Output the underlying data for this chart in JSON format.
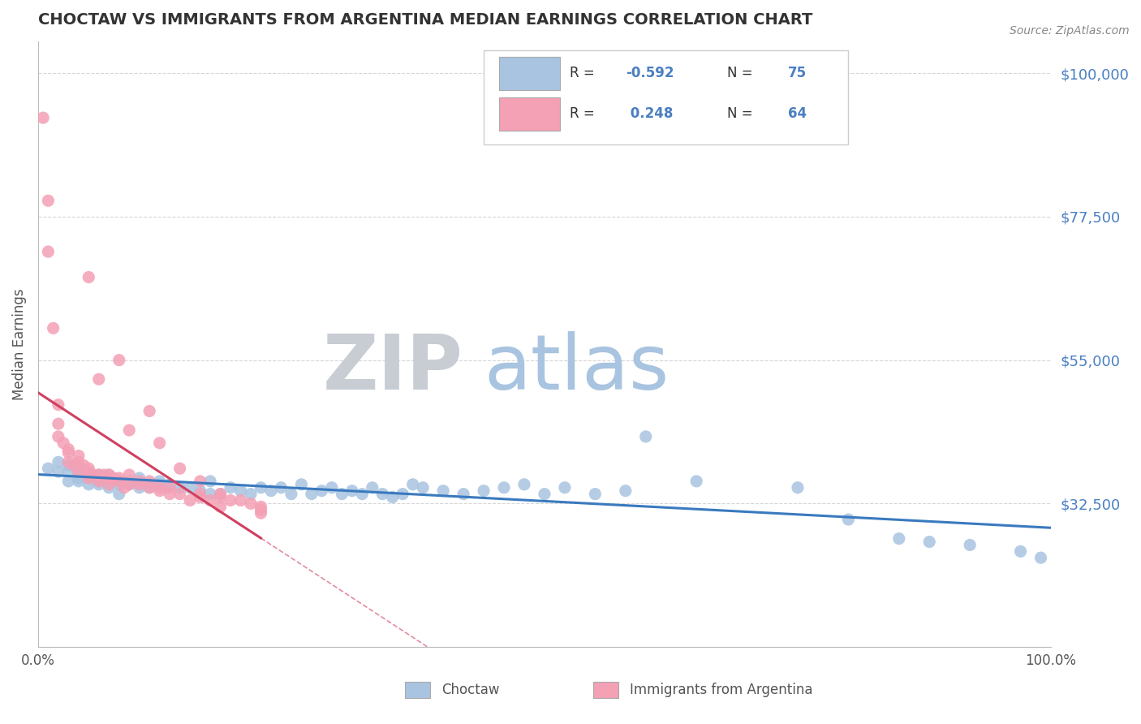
{
  "title": "CHOCTAW VS IMMIGRANTS FROM ARGENTINA MEDIAN EARNINGS CORRELATION CHART",
  "source_text": "Source: ZipAtlas.com",
  "ylabel": "Median Earnings",
  "xmin": 0.0,
  "xmax": 1.0,
  "ymin": 10000,
  "ymax": 105000,
  "yticks": [
    32500,
    55000,
    77500,
    100000
  ],
  "ytick_labels": [
    "$32,500",
    "$55,000",
    "$77,500",
    "$100,000"
  ],
  "xticks": [
    0.0,
    0.2,
    0.4,
    0.6,
    0.8,
    1.0
  ],
  "xtick_labels": [
    "0.0%",
    "",
    "",
    "",
    "",
    "100.0%"
  ],
  "blue_R": -0.592,
  "blue_N": 75,
  "pink_R": 0.248,
  "pink_N": 64,
  "blue_color": "#a8c4e0",
  "pink_color": "#f4a0b5",
  "blue_line_color": "#3a7abf",
  "pink_line_color": "#d04060",
  "label_color": "#4a7fc1",
  "title_color": "#333333",
  "grid_color": "#cccccc",
  "watermark_zip_color": "#c8cdd4",
  "watermark_atlas_color": "#a8c4e0",
  "blue_scatter_x": [
    0.01,
    0.02,
    0.02,
    0.03,
    0.03,
    0.03,
    0.04,
    0.04,
    0.04,
    0.04,
    0.05,
    0.05,
    0.05,
    0.06,
    0.06,
    0.06,
    0.07,
    0.07,
    0.07,
    0.08,
    0.08,
    0.08,
    0.09,
    0.09,
    0.1,
    0.1,
    0.11,
    0.11,
    0.12,
    0.12,
    0.13,
    0.14,
    0.15,
    0.16,
    0.17,
    0.17,
    0.18,
    0.19,
    0.2,
    0.21,
    0.22,
    0.23,
    0.24,
    0.25,
    0.26,
    0.27,
    0.28,
    0.29,
    0.3,
    0.31,
    0.32,
    0.33,
    0.34,
    0.35,
    0.36,
    0.37,
    0.38,
    0.4,
    0.42,
    0.44,
    0.46,
    0.48,
    0.5,
    0.52,
    0.55,
    0.58,
    0.6,
    0.65,
    0.75,
    0.8,
    0.85,
    0.88,
    0.92,
    0.97,
    0.99
  ],
  "blue_scatter_y": [
    38000,
    37500,
    39000,
    36000,
    37500,
    38500,
    36000,
    37000,
    38000,
    36500,
    35500,
    36500,
    37000,
    36000,
    37000,
    35500,
    36500,
    37000,
    35000,
    36000,
    35500,
    34000,
    35500,
    36000,
    35000,
    36500,
    35000,
    35500,
    35500,
    36000,
    35500,
    35000,
    35000,
    34500,
    36000,
    34000,
    34000,
    35000,
    34500,
    34000,
    35000,
    34500,
    35000,
    34000,
    35500,
    34000,
    34500,
    35000,
    34000,
    34500,
    34000,
    35000,
    34000,
    33500,
    34000,
    35500,
    35000,
    34500,
    34000,
    34500,
    35000,
    35500,
    34000,
    35000,
    34000,
    34500,
    43000,
    36000,
    35000,
    30000,
    27000,
    26500,
    26000,
    25000,
    24000
  ],
  "pink_scatter_x": [
    0.005,
    0.01,
    0.01,
    0.015,
    0.02,
    0.02,
    0.02,
    0.025,
    0.03,
    0.03,
    0.03,
    0.035,
    0.04,
    0.04,
    0.04,
    0.045,
    0.05,
    0.05,
    0.05,
    0.05,
    0.055,
    0.06,
    0.06,
    0.06,
    0.065,
    0.07,
    0.07,
    0.07,
    0.075,
    0.08,
    0.08,
    0.085,
    0.09,
    0.09,
    0.1,
    0.1,
    0.11,
    0.11,
    0.12,
    0.12,
    0.13,
    0.13,
    0.14,
    0.15,
    0.16,
    0.16,
    0.17,
    0.18,
    0.18,
    0.19,
    0.2,
    0.21,
    0.22,
    0.22,
    0.05,
    0.08,
    0.11,
    0.14,
    0.18,
    0.22,
    0.06,
    0.09,
    0.12,
    0.16
  ],
  "pink_scatter_y": [
    93000,
    80000,
    72000,
    60000,
    48000,
    45000,
    43000,
    42000,
    40500,
    41000,
    39000,
    38500,
    40000,
    39000,
    37500,
    38500,
    37500,
    37000,
    38000,
    36500,
    37000,
    37000,
    36000,
    36500,
    37000,
    37000,
    36500,
    35500,
    36500,
    36500,
    36000,
    35000,
    37000,
    35500,
    36000,
    35500,
    35000,
    36000,
    34500,
    35000,
    34000,
    35000,
    34000,
    33000,
    33500,
    34000,
    33000,
    32000,
    33500,
    33000,
    33000,
    32500,
    31500,
    31000,
    68000,
    55000,
    47000,
    38000,
    34000,
    32000,
    52000,
    44000,
    42000,
    36000
  ]
}
